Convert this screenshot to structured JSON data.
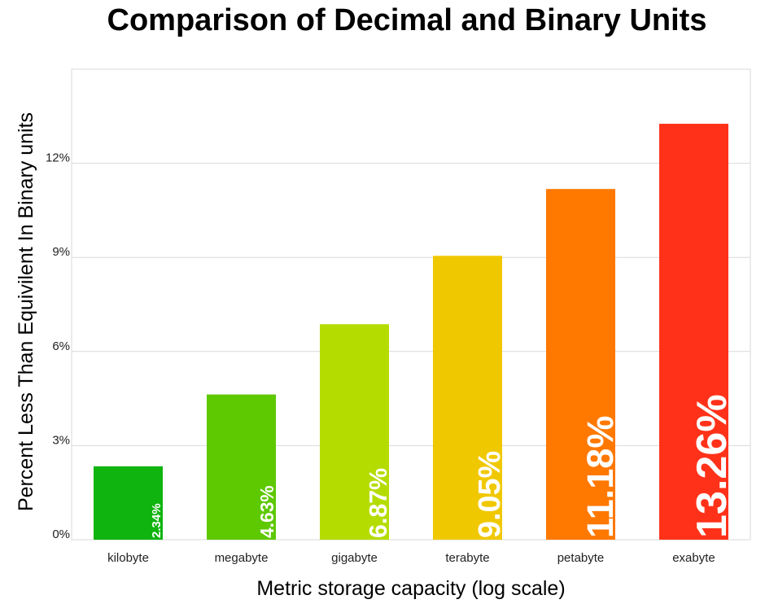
{
  "chart_data": {
    "type": "bar",
    "title": "Comparison of Decimal and Binary Units",
    "xlabel": "Metric storage capacity (log scale)",
    "ylabel": "Percent Less Than Equivilent In Binary units",
    "categories": [
      "kilobyte",
      "megabyte",
      "gigabyte",
      "terabyte",
      "petabyte",
      "exabyte"
    ],
    "values": [
      2.34,
      4.63,
      6.87,
      9.05,
      11.18,
      13.26
    ],
    "data_labels": [
      "2.34%",
      "4.63%",
      "6.87%",
      "9.05%",
      "11.18%",
      "13.26%"
    ],
    "colors": [
      "#0fb40f",
      "#5ec800",
      "#b4dc00",
      "#f0c800",
      "#ff7800",
      "#ff3219"
    ],
    "yticks": [
      0,
      3,
      6,
      9,
      12
    ],
    "ytick_labels": [
      "0%",
      "3%",
      "6%",
      "9%",
      "12%"
    ],
    "ylim": [
      0,
      15
    ],
    "grid": true,
    "legend": "none"
  }
}
